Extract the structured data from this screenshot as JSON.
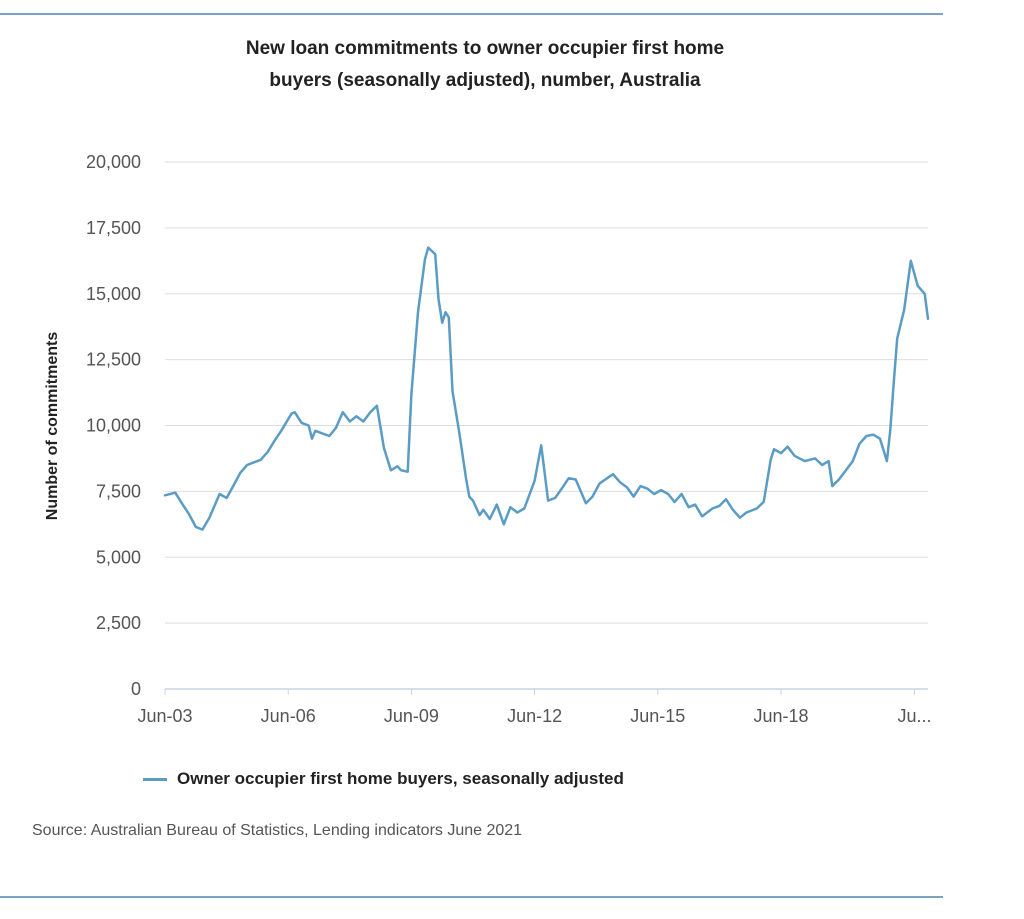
{
  "title_lines": [
    "New loan commitments to owner occupier first home",
    "buyers (seasonally adjusted), number, Australia"
  ],
  "legend_label": "Owner occupier first home buyers, seasonally adjusted",
  "source": "Source: Australian Bureau of Statistics, Lending indicators June 2021",
  "colors": {
    "series": "#5b9cc4",
    "grid": "#dedede",
    "rule": "#7aa3c3"
  },
  "chart_data": {
    "type": "line",
    "title": "New loan commitments to owner occupier first home buyers (seasonally adjusted), number, Australia",
    "xlabel": "",
    "ylabel": "Number of commitments",
    "x_tick_labels": [
      "Jun-03",
      "Jun-06",
      "Jun-09",
      "Jun-12",
      "Jun-15",
      "Jun-18",
      "Ju..."
    ],
    "y_tick_labels": [
      "0",
      "2,500",
      "5,000",
      "7,500",
      "10,000",
      "12,500",
      "15,000",
      "17,500",
      "20,000"
    ],
    "ylim": [
      0,
      20000
    ],
    "grid": true,
    "legend_position": "bottom-left",
    "x_units": "decimal year",
    "series": [
      {
        "name": "Owner occupier first home buyers, seasonally adjusted",
        "points": [
          [
            2003.42,
            7350
          ],
          [
            2003.67,
            7450
          ],
          [
            2003.83,
            7050
          ],
          [
            2004.0,
            6650
          ],
          [
            2004.17,
            6150
          ],
          [
            2004.33,
            6050
          ],
          [
            2004.5,
            6500
          ],
          [
            2004.75,
            7400
          ],
          [
            2004.92,
            7250
          ],
          [
            2005.08,
            7700
          ],
          [
            2005.25,
            8200
          ],
          [
            2005.42,
            8500
          ],
          [
            2005.58,
            8600
          ],
          [
            2005.75,
            8700
          ],
          [
            2005.92,
            9000
          ],
          [
            2006.08,
            9400
          ],
          [
            2006.25,
            9800
          ],
          [
            2006.5,
            10450
          ],
          [
            2006.58,
            10500
          ],
          [
            2006.75,
            10100
          ],
          [
            2006.92,
            10000
          ],
          [
            2007.0,
            9500
          ],
          [
            2007.08,
            9800
          ],
          [
            2007.25,
            9700
          ],
          [
            2007.42,
            9600
          ],
          [
            2007.58,
            9900
          ],
          [
            2007.75,
            10500
          ],
          [
            2007.92,
            10150
          ],
          [
            2008.08,
            10350
          ],
          [
            2008.25,
            10150
          ],
          [
            2008.42,
            10500
          ],
          [
            2008.58,
            10750
          ],
          [
            2008.75,
            9150
          ],
          [
            2008.92,
            8300
          ],
          [
            2009.08,
            8450
          ],
          [
            2009.17,
            8300
          ],
          [
            2009.33,
            8250
          ],
          [
            2009.42,
            11200
          ],
          [
            2009.58,
            14300
          ],
          [
            2009.75,
            16300
          ],
          [
            2009.83,
            16750
          ],
          [
            2010.0,
            16500
          ],
          [
            2010.08,
            14800
          ],
          [
            2010.17,
            13900
          ],
          [
            2010.25,
            14300
          ],
          [
            2010.33,
            14100
          ],
          [
            2010.42,
            11300
          ],
          [
            2010.58,
            9800
          ],
          [
            2010.75,
            8000
          ],
          [
            2010.83,
            7300
          ],
          [
            2010.92,
            7150
          ],
          [
            2011.08,
            6600
          ],
          [
            2011.17,
            6800
          ],
          [
            2011.33,
            6450
          ],
          [
            2011.5,
            7000
          ],
          [
            2011.67,
            6250
          ],
          [
            2011.83,
            6900
          ],
          [
            2012.0,
            6700
          ],
          [
            2012.17,
            6850
          ],
          [
            2012.42,
            7900
          ],
          [
            2012.58,
            9250
          ],
          [
            2012.75,
            7150
          ],
          [
            2012.92,
            7250
          ],
          [
            2013.08,
            7600
          ],
          [
            2013.25,
            8000
          ],
          [
            2013.42,
            7950
          ],
          [
            2013.67,
            7050
          ],
          [
            2013.83,
            7300
          ],
          [
            2014.0,
            7800
          ],
          [
            2014.33,
            8150
          ],
          [
            2014.5,
            7850
          ],
          [
            2014.67,
            7650
          ],
          [
            2014.83,
            7300
          ],
          [
            2015.0,
            7700
          ],
          [
            2015.17,
            7600
          ],
          [
            2015.33,
            7400
          ],
          [
            2015.5,
            7550
          ],
          [
            2015.67,
            7400
          ],
          [
            2015.83,
            7100
          ],
          [
            2016.0,
            7400
          ],
          [
            2016.17,
            6900
          ],
          [
            2016.33,
            7000
          ],
          [
            2016.5,
            6550
          ],
          [
            2016.75,
            6850
          ],
          [
            2016.92,
            6950
          ],
          [
            2017.08,
            7200
          ],
          [
            2017.25,
            6800
          ],
          [
            2017.42,
            6500
          ],
          [
            2017.58,
            6700
          ],
          [
            2017.83,
            6850
          ],
          [
            2018.0,
            7100
          ],
          [
            2018.17,
            8700
          ],
          [
            2018.25,
            9100
          ],
          [
            2018.42,
            8950
          ],
          [
            2018.58,
            9200
          ],
          [
            2018.75,
            8850
          ],
          [
            2019.0,
            8650
          ],
          [
            2019.25,
            8750
          ],
          [
            2019.42,
            8500
          ],
          [
            2019.58,
            8650
          ],
          [
            2019.67,
            7700
          ],
          [
            2019.83,
            7950
          ],
          [
            2020.0,
            8300
          ],
          [
            2020.17,
            8650
          ],
          [
            2020.33,
            9300
          ],
          [
            2020.5,
            9600
          ],
          [
            2020.67,
            9650
          ],
          [
            2020.83,
            9500
          ],
          [
            2021.0,
            8650
          ],
          [
            2021.08,
            9800
          ],
          [
            2021.17,
            11700
          ],
          [
            2021.25,
            13300
          ],
          [
            2021.42,
            14400
          ],
          [
            2021.58,
            16250
          ],
          [
            2021.75,
            15300
          ],
          [
            2021.92,
            15000
          ],
          [
            2022.0,
            14050
          ]
        ]
      }
    ]
  }
}
